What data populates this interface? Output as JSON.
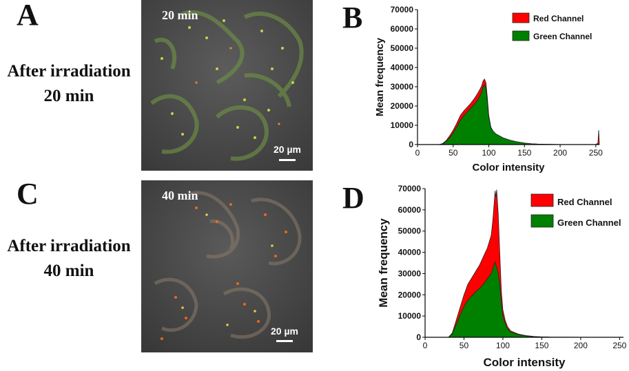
{
  "panels": {
    "a": {
      "letter": "A",
      "condition_line1": "After irradiation",
      "condition_line2": "20 min",
      "time_label": "20 min",
      "scale_label": "20 µm"
    },
    "c": {
      "letter": "C",
      "condition_line1": "After irradiation",
      "condition_line2": "40 min",
      "time_label": "40 min",
      "scale_label": "20 µm"
    },
    "b": {
      "letter": "B"
    },
    "d": {
      "letter": "D"
    }
  },
  "colors": {
    "red_channel": "#ff0000",
    "green_channel": "#008000",
    "micro_bg": "#4a4a4a"
  },
  "chart_data": [
    {
      "id": "B",
      "type": "area",
      "xlabel": "Color intensity",
      "ylabel": "Mean frequency",
      "xlim": [
        0,
        255
      ],
      "ylim": [
        0,
        70000
      ],
      "xticks": [
        0,
        50,
        100,
        150,
        200,
        250
      ],
      "yticks": [
        0,
        10000,
        20000,
        30000,
        40000,
        50000,
        60000,
        70000
      ],
      "legend_position": "top-right",
      "series": [
        {
          "name": "Red Channel",
          "color": "#ff0000",
          "x": [
            30,
            35,
            40,
            45,
            50,
            55,
            60,
            65,
            70,
            75,
            80,
            85,
            88,
            90,
            92,
            94,
            96,
            98,
            100,
            103,
            106,
            110,
            120,
            130,
            140,
            150,
            160,
            170,
            180,
            200,
            220,
            250,
            253,
            254,
            255
          ],
          "y": [
            0,
            500,
            2000,
            4500,
            7500,
            11000,
            15000,
            17500,
            19500,
            21500,
            24000,
            27000,
            29000,
            30500,
            33000,
            34000,
            32000,
            24000,
            15000,
            9000,
            7000,
            5500,
            3500,
            2200,
            1400,
            800,
            400,
            200,
            100,
            50,
            30,
            30,
            800,
            7500,
            0
          ]
        },
        {
          "name": "Green Channel",
          "color": "#008000",
          "x": [
            30,
            35,
            40,
            45,
            50,
            55,
            60,
            65,
            70,
            75,
            80,
            85,
            88,
            90,
            92,
            94,
            96,
            98,
            100,
            103,
            106,
            110,
            120,
            130,
            140,
            150,
            160,
            170,
            180,
            200,
            220,
            250
          ],
          "y": [
            0,
            300,
            1500,
            3500,
            6000,
            9000,
            12500,
            15000,
            17000,
            19000,
            21000,
            23500,
            25500,
            27500,
            30000,
            31000,
            29000,
            22000,
            14000,
            8500,
            7000,
            5500,
            3500,
            2200,
            1400,
            800,
            400,
            200,
            100,
            50,
            30,
            0
          ]
        }
      ]
    },
    {
      "id": "D",
      "type": "area",
      "xlabel": "Color intensity",
      "ylabel": "Mean frequency",
      "xlim": [
        0,
        255
      ],
      "ylim": [
        0,
        70000
      ],
      "xticks": [
        0,
        50,
        100,
        150,
        200,
        250
      ],
      "yticks": [
        0,
        10000,
        20000,
        30000,
        40000,
        50000,
        60000,
        70000
      ],
      "legend_position": "top-right",
      "series": [
        {
          "name": "Red Channel",
          "color": "#ff0000",
          "x": [
            30,
            35,
            40,
            45,
            50,
            55,
            60,
            65,
            70,
            75,
            80,
            85,
            87,
            89,
            90,
            91,
            92,
            94,
            96,
            98,
            100,
            103,
            106,
            110,
            120,
            130,
            140,
            150,
            160,
            180,
            200,
            250
          ],
          "y": [
            0,
            2000,
            8000,
            14000,
            20000,
            25000,
            28000,
            31000,
            34000,
            38000,
            42000,
            48000,
            55000,
            64000,
            69000,
            66000,
            69500,
            58000,
            40000,
            22000,
            13000,
            8000,
            5000,
            3000,
            1500,
            800,
            400,
            200,
            100,
            50,
            30,
            0
          ]
        },
        {
          "name": "Green Channel",
          "color": "#008000",
          "x": [
            30,
            35,
            40,
            45,
            50,
            55,
            60,
            65,
            70,
            75,
            80,
            85,
            87,
            89,
            90,
            91,
            92,
            94,
            96,
            98,
            100,
            103,
            106,
            110,
            120,
            130,
            140,
            150,
            160,
            180,
            200,
            250
          ],
          "y": [
            0,
            1500,
            6000,
            10500,
            14500,
            17500,
            19500,
            21500,
            23000,
            25000,
            27500,
            30000,
            32000,
            34500,
            35500,
            34000,
            33000,
            30000,
            25000,
            16000,
            10000,
            6500,
            4000,
            2500,
            1200,
            600,
            300,
            150,
            80,
            40,
            20,
            0
          ]
        }
      ]
    }
  ]
}
